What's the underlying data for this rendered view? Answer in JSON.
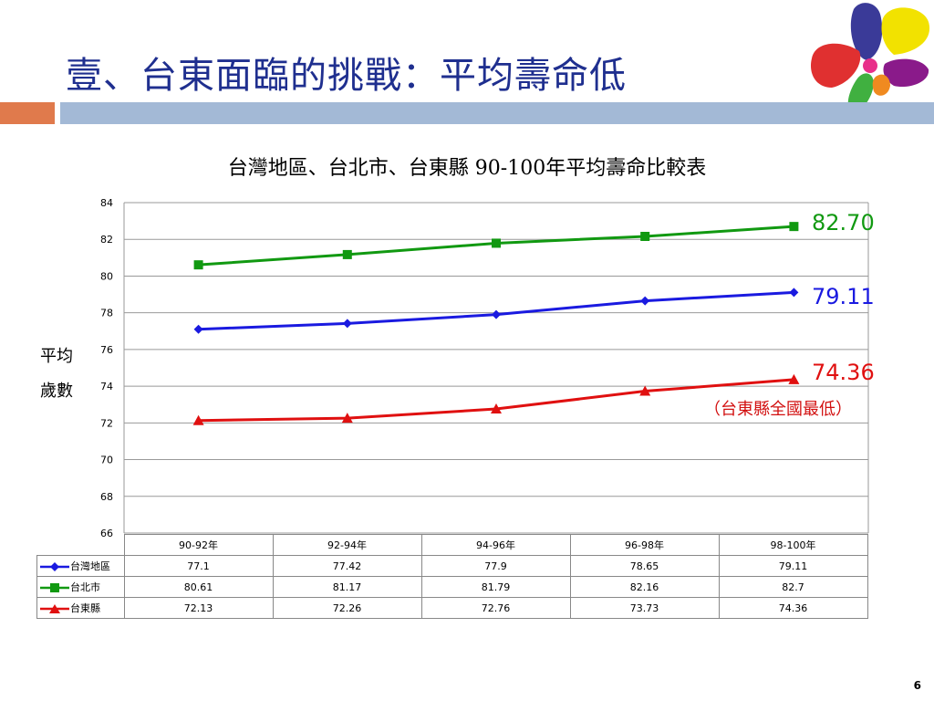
{
  "slide": {
    "title": "壹、台東面臨的挑戰：平均壽命低",
    "page_number": "6"
  },
  "chart_data": {
    "type": "line",
    "title": "台灣地區、台北市、台東縣 90-100年平均壽命比較表",
    "ylabel_line1": "平均",
    "ylabel_line2": "歲數",
    "ylim": [
      66,
      84
    ],
    "yticks": [
      "84",
      "82",
      "80",
      "78",
      "76",
      "74",
      "72",
      "70",
      "68",
      "66"
    ],
    "grid": true,
    "categories": [
      "90-92年",
      "92-94年",
      "94-96年",
      "96-98年",
      "98-100年"
    ],
    "series": [
      {
        "name": "台灣地區",
        "values": [
          77.1,
          77.42,
          77.9,
          78.65,
          79.11
        ],
        "labels": [
          "77.1",
          "77.42",
          "77.9",
          "78.65",
          "79.11"
        ],
        "color": "#1a1ae0",
        "marker": "diamond"
      },
      {
        "name": "台北市",
        "values": [
          80.61,
          81.17,
          81.79,
          82.16,
          82.7
        ],
        "labels": [
          "80.61",
          "81.17",
          "81.79",
          "82.16",
          "82.7"
        ],
        "color": "#119911",
        "marker": "square"
      },
      {
        "name": "台東縣",
        "values": [
          72.13,
          72.26,
          72.76,
          73.73,
          74.36
        ],
        "labels": [
          "72.13",
          "72.26",
          "72.76",
          "73.73",
          "74.36"
        ],
        "color": "#e01010",
        "marker": "triangle"
      }
    ],
    "end_labels": [
      {
        "text": "82.70",
        "color": "#119911"
      },
      {
        "text": "79.11",
        "color": "#1a1ae0"
      },
      {
        "text": "74.36",
        "color": "#e01010"
      }
    ],
    "note": "（台東縣全國最低）"
  },
  "logo": {
    "petal_colors": [
      "#3a3a98",
      "#f2e200",
      "#e03030",
      "#8a1a8a",
      "#40b040",
      "#f08a20",
      "#e8308a"
    ]
  }
}
